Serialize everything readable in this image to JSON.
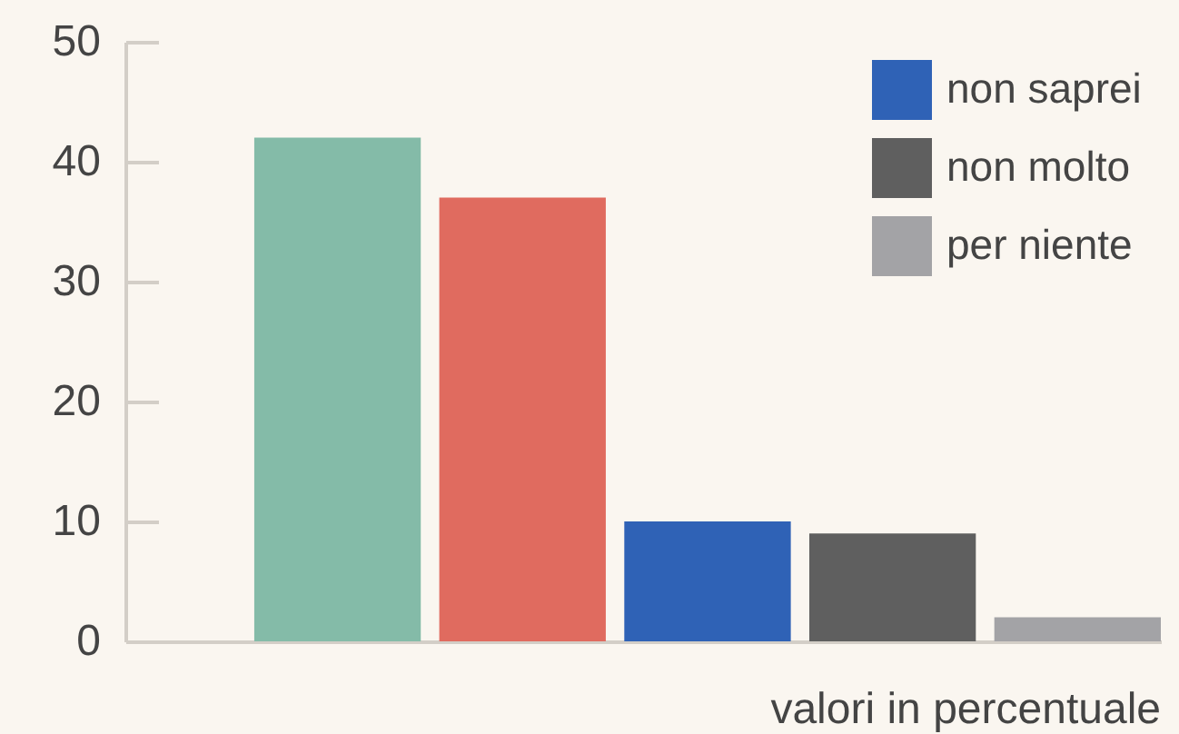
{
  "chart_data": {
    "type": "bar",
    "categories": [
      null
    ],
    "series": [
      {
        "color": "#84bba8",
        "values": [
          42
        ]
      },
      {
        "color": "#e06b5f",
        "values": [
          37
        ]
      },
      {
        "name": "non saprei",
        "color": "#2f62b6",
        "values": [
          10
        ]
      },
      {
        "name": "non molto",
        "color": "#5f5f5f",
        "values": [
          9
        ]
      },
      {
        "name": "per niente",
        "color": "#a3a3a6",
        "values": [
          2
        ]
      }
    ],
    "ylim": [
      0,
      50
    ],
    "yticks": [
      0,
      10,
      20,
      30,
      40,
      50
    ],
    "grid": false,
    "legend": "top right",
    "tick_labels": "y",
    "annotations": [
      "valori in percentuale"
    ]
  }
}
